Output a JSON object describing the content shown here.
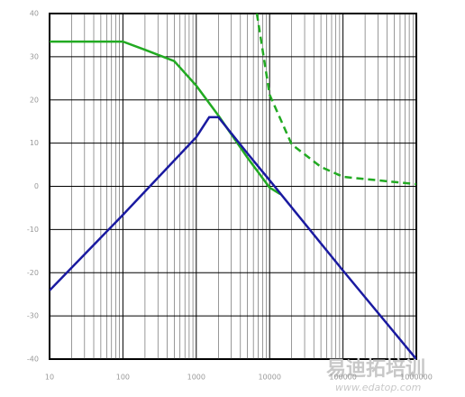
{
  "chart_data": {
    "type": "line",
    "xlog": true,
    "grid": true,
    "minor_grid": true,
    "xlim": [
      10,
      1000000
    ],
    "xticks": [
      10,
      100,
      1000,
      10000,
      100000,
      1000000
    ],
    "ylim": [
      -40,
      40
    ],
    "yticks": [
      -40,
      -30,
      -20,
      -10,
      0,
      10,
      20,
      30,
      40
    ],
    "series": [
      {
        "color": "#22aa22",
        "dash": false,
        "x": [
          10,
          100,
          200,
          500,
          1000,
          2000,
          5000,
          10000,
          14000
        ],
        "values": [
          33.5,
          33.5,
          31.6,
          29,
          23.3,
          16.4,
          6.6,
          -0.3,
          -1.8
        ]
      },
      {
        "color": "#22aa22",
        "dash": true,
        "x": [
          6700,
          10000,
          20000,
          50000,
          100000,
          1000000
        ],
        "values": [
          40,
          21.2,
          9.7,
          4.5,
          2.2,
          0.5
        ]
      },
      {
        "color": "#1a1aa0",
        "dash": false,
        "x": [
          10,
          100,
          1000,
          1500,
          2000,
          5000,
          10000,
          100000,
          1000000
        ],
        "values": [
          -24.1,
          -6.6,
          11.4,
          16,
          16,
          7.6,
          1.4,
          -19.5,
          -40
        ]
      }
    ],
    "watermark": "易迪拓培训",
    "watermark_url": "www.edatop.com"
  }
}
